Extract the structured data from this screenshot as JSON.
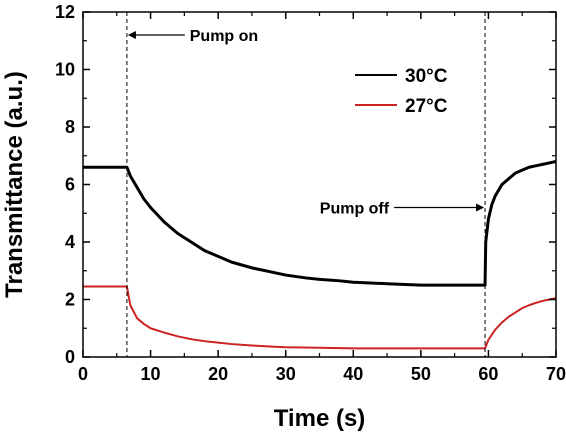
{
  "chart_data": {
    "type": "line",
    "title": "",
    "xlabel": "Time (s)",
    "ylabel": "Transmittance (a.u.)",
    "xlim": [
      0,
      70
    ],
    "ylim": [
      0,
      12
    ],
    "xticks": [
      "0",
      "10",
      "20",
      "30",
      "40",
      "50",
      "60",
      "70"
    ],
    "yticks": [
      "0",
      "2",
      "4",
      "6",
      "8",
      "10",
      "12"
    ],
    "grid": false,
    "legend_position": "upper-right",
    "series": [
      {
        "name": "30°C",
        "color": "#000000",
        "x": [
          0,
          6.5,
          7,
          8,
          9,
          10,
          12,
          14,
          16,
          18,
          20,
          22,
          25,
          28,
          30,
          33,
          35,
          38,
          40,
          45,
          50,
          55,
          59.5,
          59.6,
          60,
          60.5,
          61,
          62,
          63,
          64,
          65,
          66,
          67,
          68,
          69,
          70
        ],
        "y": [
          6.6,
          6.6,
          6.3,
          5.9,
          5.5,
          5.2,
          4.7,
          4.3,
          4.0,
          3.7,
          3.5,
          3.3,
          3.1,
          2.95,
          2.85,
          2.75,
          2.7,
          2.65,
          2.6,
          2.55,
          2.5,
          2.5,
          2.5,
          4.0,
          4.8,
          5.3,
          5.6,
          6.0,
          6.2,
          6.4,
          6.5,
          6.6,
          6.65,
          6.7,
          6.75,
          6.8
        ]
      },
      {
        "name": "27°C",
        "color": "#cc2222",
        "x": [
          0,
          6.5,
          7,
          8,
          9,
          10,
          12,
          14,
          16,
          18,
          20,
          22,
          25,
          28,
          30,
          35,
          40,
          45,
          50,
          55,
          59.5,
          60,
          61,
          62,
          63,
          64,
          65,
          66,
          67,
          68,
          69,
          70
        ],
        "y": [
          2.45,
          2.45,
          1.8,
          1.35,
          1.15,
          1.0,
          0.85,
          0.72,
          0.62,
          0.55,
          0.5,
          0.45,
          0.4,
          0.36,
          0.34,
          0.32,
          0.3,
          0.3,
          0.3,
          0.3,
          0.3,
          0.6,
          0.95,
          1.2,
          1.4,
          1.55,
          1.7,
          1.8,
          1.88,
          1.95,
          2.0,
          2.05
        ]
      }
    ],
    "vlines": [
      6.5,
      59.5
    ],
    "annotations": [
      {
        "text": "Pump on",
        "x": 15.8,
        "y": 11.2,
        "arrow_to_x": 6.5
      },
      {
        "text": "Pump off",
        "x": 45.3,
        "y": 5.2,
        "arrow_to_x": 59.5
      }
    ]
  }
}
